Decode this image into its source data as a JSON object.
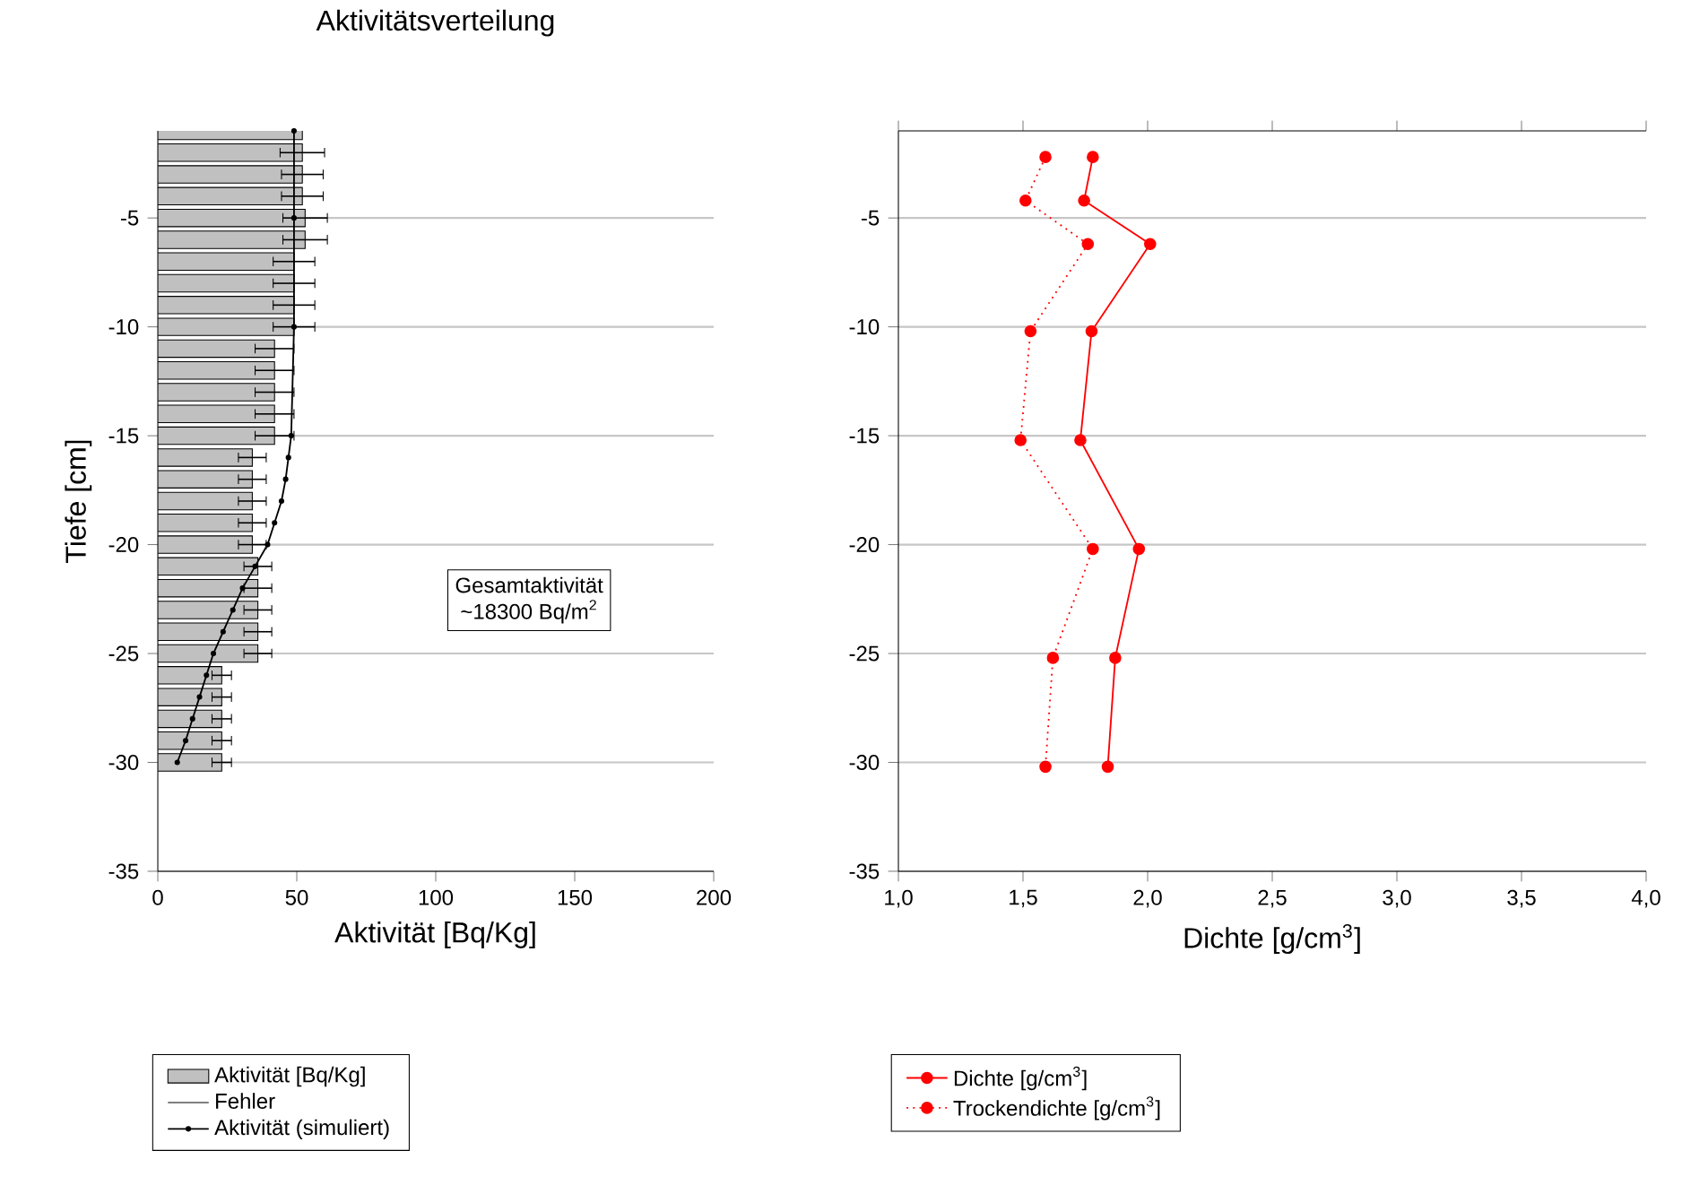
{
  "chart_data": [
    {
      "type": "bar",
      "orientation": "horizontal",
      "title": "Aktivitätsverteilung",
      "xlabel": "Aktivität [Bq/Kg]",
      "ylabel": "Tiefe [cm]",
      "annotations": [
        "Gesamtaktivität",
        "~18300 Bq/m$^{2}$",
        "Fehler"
      ],
      "xlim": [
        0,
        200
      ],
      "xticks": [
        0,
        50,
        100,
        150,
        200
      ],
      "ylim": [
        -35,
        -1
      ],
      "yticks": [
        -35,
        -30,
        -25,
        -20,
        -15,
        -10,
        -5
      ],
      "grid": "y",
      "legend": "bottom",
      "series": [
        {
          "type": "bar",
          "name": "Aktivität [Bq/Kg]",
          "color": "#c0c0c0",
          "x": [
            -1,
            -2,
            -3,
            -4,
            -5,
            -6,
            -7,
            -8,
            -9,
            -10,
            -11,
            -12,
            -13,
            -14,
            -15,
            -16,
            -17,
            -18,
            -19,
            -20,
            -21,
            -22,
            -23,
            -24,
            -25,
            -26,
            -27,
            -28,
            -29,
            -30
          ],
          "values": [
            52,
            52,
            52,
            52,
            53,
            53,
            49,
            49,
            49,
            49,
            42,
            42,
            42,
            42,
            42,
            34,
            34,
            34,
            34,
            34,
            36,
            36,
            36,
            36,
            36,
            23,
            23,
            23,
            23,
            23
          ],
          "errors": [
            null,
            8,
            7.5,
            7.5,
            8,
            8,
            7.5,
            7.5,
            7.5,
            7.5,
            7,
            7,
            7,
            7,
            7,
            5,
            5,
            5,
            5,
            5,
            5,
            5,
            5,
            5,
            5,
            3.5,
            3.5,
            3.5,
            3.5,
            3.5
          ]
        },
        {
          "type": "line",
          "name": "Aktivität (simuliert)",
          "color": "#000000",
          "marker": "circle",
          "line_style": "solid",
          "x": [
            -1,
            -5,
            -10,
            -15,
            -16,
            -17,
            -18,
            -19,
            -20,
            -21,
            -22,
            -23,
            -24,
            -25,
            -26,
            -27,
            -28,
            -29,
            -30
          ],
          "values": [
            49,
            49,
            49,
            48,
            47,
            46,
            44.5,
            42,
            39.5,
            35,
            30.5,
            27,
            23.5,
            20,
            17.5,
            15,
            12.5,
            10,
            7
          ]
        }
      ]
    },
    {
      "type": "line",
      "xlabel": "Dichte [g/cm$^{3}$]",
      "xlim": [
        1,
        4
      ],
      "xticks": [
        {
          "value": 1,
          "label": "1,0"
        },
        {
          "value": 1.5,
          "label": "1,5"
        },
        {
          "value": 2,
          "label": "2,0"
        },
        {
          "value": 2.5,
          "label": "2,5"
        },
        {
          "value": 3,
          "label": "3,0"
        },
        {
          "value": 3.5,
          "label": "3,5"
        },
        {
          "value": 4,
          "label": "4,0"
        }
      ],
      "ylim": [
        -35,
        -1
      ],
      "yticks": [
        -35,
        -30,
        -25,
        -20,
        -15,
        -10,
        -5
      ],
      "grid": "y",
      "legend": "bottom",
      "series": [
        {
          "name": "Dichte [g/cm$^{3}$]",
          "color": "#ff0000",
          "marker": "circle",
          "line_style": "solid",
          "x": [
            1.78,
            1.745,
            2.01,
            1.775,
            1.73,
            1.965,
            1.87,
            1.84
          ],
          "values": [
            -2.2,
            -4.2,
            -6.2,
            -10.2,
            -15.2,
            -20.2,
            -25.2,
            -30.2
          ]
        },
        {
          "name": "Trockendichte [g/cm$^{3}$]",
          "color": "#ff0000",
          "marker": "circle",
          "line_style": "dotted",
          "x": [
            1.59,
            1.51,
            1.76,
            1.53,
            1.49,
            1.78,
            1.62,
            1.59
          ],
          "values": [
            -2.2,
            -4.2,
            -6.2,
            -10.2,
            -15.2,
            -20.2,
            -25.2,
            -30.2
          ]
        }
      ]
    }
  ]
}
